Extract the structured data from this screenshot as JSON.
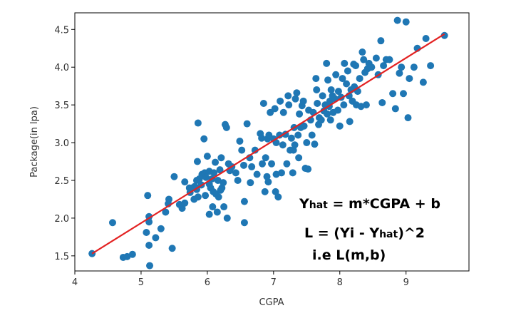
{
  "chart_data": {
    "type": "scatter",
    "title": "",
    "xlabel": "CGPA",
    "ylabel": "Package(in lpa)",
    "xlim": [
      4.0,
      9.95
    ],
    "ylim": [
      1.3,
      4.72
    ],
    "xticks": [
      4,
      5,
      6,
      7,
      8,
      9
    ],
    "yticks": [
      1.5,
      2.0,
      2.5,
      3.0,
      3.5,
      4.0,
      4.5
    ],
    "ytick_labels": [
      "1.5",
      "2.0",
      "2.5",
      "3.0",
      "3.5",
      "4.0",
      "4.5"
    ],
    "grid": false,
    "colors": {
      "points": "#1f77b4",
      "line": "#e32222",
      "axes": "#000000"
    },
    "series": [
      {
        "name": "data",
        "kind": "scatter",
        "points": [
          [
            4.26,
            1.53
          ],
          [
            4.57,
            1.94
          ],
          [
            4.73,
            1.48
          ],
          [
            4.79,
            1.49
          ],
          [
            4.87,
            1.52
          ],
          [
            5.08,
            1.81
          ],
          [
            5.1,
            2.3
          ],
          [
            5.12,
            1.64
          ],
          [
            5.12,
            1.95
          ],
          [
            5.12,
            2.02
          ],
          [
            5.13,
            1.37
          ],
          [
            5.22,
            1.74
          ],
          [
            5.3,
            1.86
          ],
          [
            5.37,
            2.08
          ],
          [
            5.41,
            2.19
          ],
          [
            5.42,
            2.25
          ],
          [
            5.47,
            1.6
          ],
          [
            5.5,
            2.55
          ],
          [
            5.58,
            2.18
          ],
          [
            5.62,
            2.13
          ],
          [
            5.66,
            2.2
          ],
          [
            5.66,
            2.48
          ],
          [
            5.73,
            2.4
          ],
          [
            5.74,
            2.34
          ],
          [
            5.77,
            2.4
          ],
          [
            5.8,
            2.25
          ],
          [
            5.81,
            2.42
          ],
          [
            5.84,
            2.38
          ],
          [
            5.84,
            2.5
          ],
          [
            5.86,
            2.28
          ],
          [
            5.85,
            2.75
          ],
          [
            5.86,
            3.26
          ],
          [
            5.88,
            2.52
          ],
          [
            5.91,
            2.44
          ],
          [
            5.92,
            2.58
          ],
          [
            5.95,
            3.05
          ],
          [
            5.96,
            2.6
          ],
          [
            5.97,
            2.3
          ],
          [
            5.98,
            2.54
          ],
          [
            6.0,
            2.82
          ],
          [
            6.03,
            2.62
          ],
          [
            6.03,
            2.45
          ],
          [
            6.03,
            2.05
          ],
          [
            6.05,
            2.4
          ],
          [
            6.07,
            2.52
          ],
          [
            6.08,
            2.15
          ],
          [
            6.09,
            2.35
          ],
          [
            6.1,
            2.6
          ],
          [
            6.12,
            2.74
          ],
          [
            6.13,
            2.32
          ],
          [
            6.15,
            2.08
          ],
          [
            6.16,
            2.5
          ],
          [
            6.17,
            2.28
          ],
          [
            6.19,
            2.64
          ],
          [
            6.2,
            2.37
          ],
          [
            6.21,
            2.8
          ],
          [
            6.22,
            2.4
          ],
          [
            6.24,
            2.47
          ],
          [
            6.25,
            2.15
          ],
          [
            6.27,
            3.24
          ],
          [
            6.29,
            3.2
          ],
          [
            6.3,
            2.0
          ],
          [
            6.32,
            2.72
          ],
          [
            6.34,
            2.63
          ],
          [
            6.37,
            2.68
          ],
          [
            6.43,
            2.6
          ],
          [
            6.46,
            2.5
          ],
          [
            6.49,
            3.02
          ],
          [
            6.52,
            2.9
          ],
          [
            6.55,
            2.7
          ],
          [
            6.56,
            1.94
          ],
          [
            6.56,
            2.22
          ],
          [
            6.6,
            3.25
          ],
          [
            6.64,
            2.8
          ],
          [
            6.65,
            2.47
          ],
          [
            6.67,
            2.68
          ],
          [
            6.72,
            2.9
          ],
          [
            6.75,
            2.58
          ],
          [
            6.8,
            3.12
          ],
          [
            6.82,
            3.06
          ],
          [
            6.83,
            2.72
          ],
          [
            6.85,
            3.52
          ],
          [
            6.87,
            2.35
          ],
          [
            6.88,
            2.8
          ],
          [
            6.9,
            2.55
          ],
          [
            6.91,
            3.05
          ],
          [
            6.92,
            2.48
          ],
          [
            6.93,
            3.1
          ],
          [
            6.95,
            3.4
          ],
          [
            6.97,
            2.72
          ],
          [
            7.0,
            3.05
          ],
          [
            7.02,
            3.45
          ],
          [
            7.03,
            2.35
          ],
          [
            7.04,
            2.58
          ],
          [
            7.04,
            3.0
          ],
          [
            7.07,
            2.28
          ],
          [
            7.09,
            3.1
          ],
          [
            7.1,
            3.55
          ],
          [
            7.12,
            2.6
          ],
          [
            7.14,
            2.97
          ],
          [
            7.15,
            3.4
          ],
          [
            7.18,
            3.11
          ],
          [
            7.2,
            2.72
          ],
          [
            7.22,
            3.62
          ],
          [
            7.23,
            3.5
          ],
          [
            7.25,
            2.9
          ],
          [
            7.27,
            3.06
          ],
          [
            7.29,
            2.6
          ],
          [
            7.3,
            2.9
          ],
          [
            7.31,
            3.2
          ],
          [
            7.32,
            2.97
          ],
          [
            7.33,
            3.58
          ],
          [
            7.35,
            3.66
          ],
          [
            7.37,
            3.1
          ],
          [
            7.38,
            2.8
          ],
          [
            7.39,
            3.38
          ],
          [
            7.41,
            3.2
          ],
          [
            7.43,
            3.49
          ],
          [
            7.45,
            3.55
          ],
          [
            7.46,
            3.22
          ],
          [
            7.48,
            2.66
          ],
          [
            7.5,
            3.0
          ],
          [
            7.52,
            2.65
          ],
          [
            7.53,
            3.43
          ],
          [
            7.56,
            3.3
          ],
          [
            7.58,
            3.1
          ],
          [
            7.6,
            3.4
          ],
          [
            7.62,
            2.98
          ],
          [
            7.64,
            3.85
          ],
          [
            7.65,
            3.7
          ],
          [
            7.66,
            3.52
          ],
          [
            7.68,
            3.24
          ],
          [
            7.69,
            3.33
          ],
          [
            7.72,
            3.3
          ],
          [
            7.74,
            3.62
          ],
          [
            7.76,
            3.42
          ],
          [
            7.78,
            3.5
          ],
          [
            7.8,
            4.05
          ],
          [
            7.81,
            3.38
          ],
          [
            7.82,
            3.83
          ],
          [
            7.84,
            3.48
          ],
          [
            7.85,
            3.55
          ],
          [
            7.86,
            3.3
          ],
          [
            7.87,
            3.7
          ],
          [
            7.89,
            3.62
          ],
          [
            7.9,
            3.4
          ],
          [
            7.93,
            3.58
          ],
          [
            7.94,
            3.9
          ],
          [
            7.97,
            3.43
          ],
          [
            7.98,
            3.68
          ],
          [
            8.0,
            3.22
          ],
          [
            8.02,
            3.6
          ],
          [
            8.04,
            3.85
          ],
          [
            8.06,
            3.5
          ],
          [
            8.07,
            4.05
          ],
          [
            8.1,
            3.78
          ],
          [
            8.12,
            3.95
          ],
          [
            8.14,
            3.62
          ],
          [
            8.15,
            3.28
          ],
          [
            8.17,
            3.7
          ],
          [
            8.19,
            3.55
          ],
          [
            8.21,
            4.04
          ],
          [
            8.22,
            3.74
          ],
          [
            8.24,
            4.02
          ],
          [
            8.25,
            3.5
          ],
          [
            8.27,
            3.68
          ],
          [
            8.3,
            3.85
          ],
          [
            8.32,
            3.48
          ],
          [
            8.34,
            4.2
          ],
          [
            8.36,
            4.1
          ],
          [
            8.38,
            3.93
          ],
          [
            8.4,
            3.5
          ],
          [
            8.42,
            3.98
          ],
          [
            8.44,
            4.05
          ],
          [
            8.48,
            4.0
          ],
          [
            8.55,
            4.12
          ],
          [
            8.58,
            3.9
          ],
          [
            8.62,
            4.35
          ],
          [
            8.64,
            3.53
          ],
          [
            8.66,
            4.02
          ],
          [
            8.7,
            4.1
          ],
          [
            8.75,
            4.1
          ],
          [
            8.8,
            3.65
          ],
          [
            8.84,
            3.45
          ],
          [
            8.87,
            4.62
          ],
          [
            8.9,
            3.92
          ],
          [
            8.93,
            4.0
          ],
          [
            8.96,
            3.65
          ],
          [
            9.0,
            4.6
          ],
          [
            9.03,
            3.33
          ],
          [
            9.05,
            3.85
          ],
          [
            9.12,
            4.0
          ],
          [
            9.17,
            4.25
          ],
          [
            9.26,
            3.8
          ],
          [
            9.3,
            4.38
          ],
          [
            9.37,
            4.02
          ],
          [
            9.58,
            4.42
          ]
        ]
      },
      {
        "name": "regression",
        "kind": "line",
        "points": [
          [
            4.26,
            1.53
          ],
          [
            9.58,
            4.44
          ]
        ]
      }
    ],
    "annotations": [
      {
        "main": "Y",
        "sub": "hat",
        "rest": " = m*CGPA + b"
      },
      {
        "main": "L = (Yi - Y",
        "sub": "hat",
        "rest": ")^2"
      },
      {
        "main": "i.e  L(m,b)",
        "sub": "",
        "rest": ""
      }
    ]
  }
}
